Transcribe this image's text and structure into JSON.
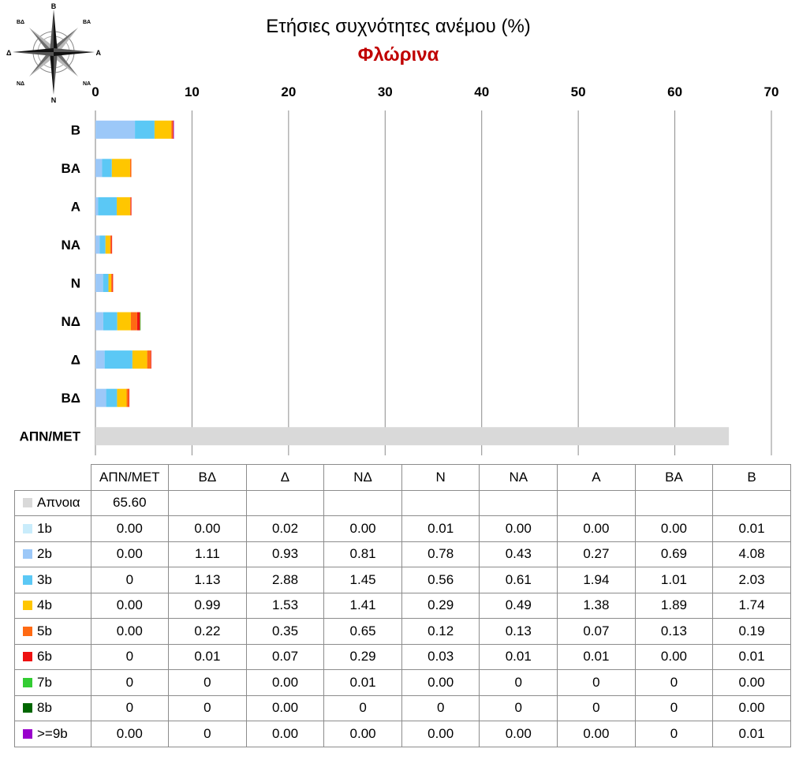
{
  "compass": {
    "labels": {
      "n": "Β",
      "ne": "ΒΑ",
      "e": "Α",
      "se": "ΝΑ",
      "s": "Ν",
      "sw": "ΝΔ",
      "w": "Δ",
      "nw": "ΒΔ"
    }
  },
  "chart_data": {
    "type": "bar",
    "orientation": "horizontal",
    "stacked": true,
    "title": "Ετήσιες συχνότητες ανέμου (%)",
    "subtitle": "Φλώρινα",
    "xlim": [
      0,
      70
    ],
    "x_ticks": [
      "0",
      "10",
      "20",
      "30",
      "40",
      "50",
      "60",
      "70"
    ],
    "x_axis_position": "top",
    "grid": "vertical",
    "categories": [
      "ΑΠΝ/ΜΕΤ",
      "ΒΔ",
      "Δ",
      "ΝΔ",
      "Ν",
      "ΝΑ",
      "Α",
      "ΒΑ",
      "Β"
    ],
    "series": [
      {
        "name": "Απνοια",
        "color": "#d9d9d9",
        "values": [
          65.6,
          null,
          null,
          null,
          null,
          null,
          null,
          null,
          null
        ],
        "labels": [
          "65.60",
          "",
          "",
          "",
          "",
          "",
          "",
          "",
          ""
        ]
      },
      {
        "name": "1b",
        "color": "#c9ecfb",
        "values": [
          0,
          0,
          0.02,
          0,
          0.01,
          0,
          0,
          0,
          0.01
        ],
        "labels": [
          "0.00",
          "0.00",
          "0.02",
          "0.00",
          "0.01",
          "0.00",
          "0.00",
          "0.00",
          "0.01"
        ]
      },
      {
        "name": "2b",
        "color": "#9cc8f8",
        "values": [
          0,
          1.11,
          0.93,
          0.81,
          0.78,
          0.43,
          0.27,
          0.69,
          4.08
        ],
        "labels": [
          "0.00",
          "1.11",
          "0.93",
          "0.81",
          "0.78",
          "0.43",
          "0.27",
          "0.69",
          "4.08"
        ]
      },
      {
        "name": "3b",
        "color": "#5bc8f5",
        "values": [
          0,
          1.13,
          2.88,
          1.45,
          0.56,
          0.61,
          1.94,
          1.01,
          2.03
        ],
        "labels": [
          "0",
          "1.13",
          "2.88",
          "1.45",
          "0.56",
          "0.61",
          "1.94",
          "1.01",
          "2.03"
        ]
      },
      {
        "name": "4b",
        "color": "#ffc600",
        "values": [
          0,
          0.99,
          1.53,
          1.41,
          0.29,
          0.49,
          1.38,
          1.89,
          1.74
        ],
        "labels": [
          "0.00",
          "0.99",
          "1.53",
          "1.41",
          "0.29",
          "0.49",
          "1.38",
          "1.89",
          "1.74"
        ]
      },
      {
        "name": "5b",
        "color": "#ff6a13",
        "values": [
          0,
          0.22,
          0.35,
          0.65,
          0.12,
          0.13,
          0.07,
          0.13,
          0.19
        ],
        "labels": [
          "0.00",
          "0.22",
          "0.35",
          "0.65",
          "0.12",
          "0.13",
          "0.07",
          "0.13",
          "0.19"
        ]
      },
      {
        "name": "6b",
        "color": "#ee1111",
        "values": [
          0,
          0.01,
          0.07,
          0.29,
          0.03,
          0.01,
          0.01,
          0,
          0.01
        ],
        "labels": [
          "0",
          "0.01",
          "0.07",
          "0.29",
          "0.03",
          "0.01",
          "0.01",
          "0.00",
          "0.01"
        ]
      },
      {
        "name": "7b",
        "color": "#33cc33",
        "values": [
          0,
          0,
          0,
          0.01,
          0,
          0,
          0,
          0,
          0
        ],
        "labels": [
          "0",
          "0",
          "0.00",
          "0.01",
          "0.00",
          "0",
          "0",
          "0",
          "0.00"
        ]
      },
      {
        "name": "8b",
        "color": "#006600",
        "values": [
          0,
          0,
          0,
          0,
          0,
          0,
          0,
          0,
          0
        ],
        "labels": [
          "0",
          "0",
          "0.00",
          "0",
          "0",
          "0",
          "0",
          "0",
          "0.00"
        ]
      },
      {
        "name": ">=9b",
        "color": "#9900cc",
        "values": [
          0,
          0,
          0,
          0,
          0,
          0,
          0,
          0,
          0.01
        ],
        "labels": [
          "0.00",
          "0",
          "0.00",
          "0.00",
          "0.00",
          "0.00",
          "0.00",
          "0",
          "0.01"
        ]
      }
    ]
  }
}
